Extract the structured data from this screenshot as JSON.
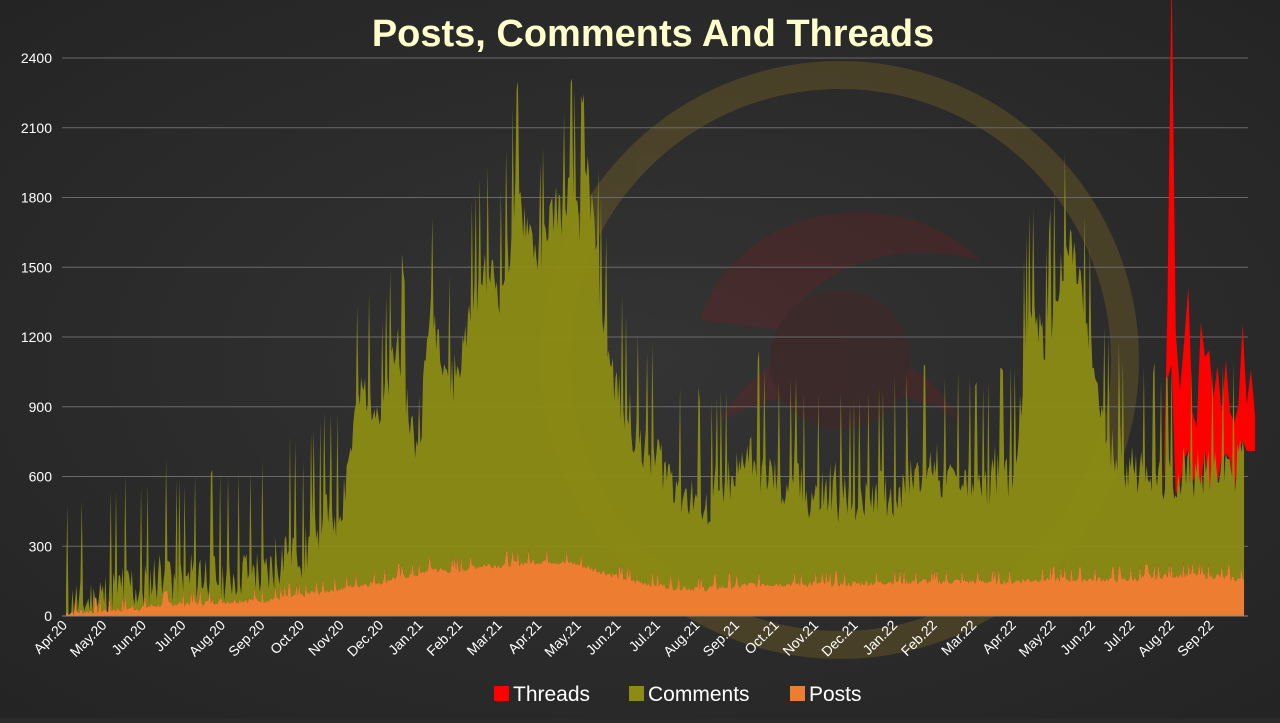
{
  "colors": {
    "background": "#2b2b2b",
    "grid": "#6a6a6a",
    "axis_text": "#ffffff",
    "title_text": "#ffffcc",
    "threads": "#ff0000",
    "comments": "#8c8c14",
    "posts": "#ed7d31"
  },
  "chart_data": {
    "type": "area",
    "title": "Posts, Comments And Threads",
    "xlabel": "",
    "ylabel": "",
    "ylim": [
      0,
      2400
    ],
    "yticks": [
      0,
      300,
      600,
      900,
      1200,
      1500,
      1800,
      2100,
      2400
    ],
    "ytick_labels": [
      "0",
      "300",
      "600",
      "900",
      "1200",
      "1500",
      "1800",
      "2100",
      "2400"
    ],
    "xticks": [
      "Apr.20",
      "May.20",
      "Jun.20",
      "Jul.20",
      "Aug.20",
      "Sep.20",
      "Oct.20",
      "Nov.20",
      "Dec.20",
      "Jan.21",
      "Feb.21",
      "Mar.21",
      "Apr.21",
      "May.21",
      "Jun.21",
      "Jul.21",
      "Aug.21",
      "Sep.21",
      "Oct.21",
      "Nov.21",
      "Dec.21",
      "Jan.22",
      "Feb.22",
      "Mar.22",
      "Apr.22",
      "May.22",
      "Jun.22",
      "Jul.22",
      "Aug.22",
      "Sep.22"
    ],
    "stacked": true,
    "grid": true,
    "legend_position": "bottom",
    "series": [
      {
        "name": "Threads",
        "color": "#ff0000",
        "x": [
          "Jul.22",
          "Jul.22",
          "Aug.22",
          "Aug.22",
          "Aug.22",
          "Aug.22",
          "Aug.22",
          "Aug.22",
          "Aug.22",
          "Aug.22",
          "Aug.22",
          "Aug.22",
          "Aug.22",
          "Aug.22",
          "Aug.22",
          "Aug.22",
          "Sep.22",
          "Sep.22",
          "Sep.22",
          "Sep.22",
          "Sep.22",
          "Sep.22",
          "Sep.22",
          "Sep.22"
        ],
        "values": [
          0,
          0,
          300,
          1700,
          700,
          400,
          500,
          700,
          300,
          200,
          700,
          400,
          600,
          300,
          500,
          200,
          400,
          200,
          300,
          200,
          500,
          200,
          350,
          150
        ]
      },
      {
        "name": "Comments",
        "color": "#8c8c14",
        "monthly_points": [
          {
            "month": "Apr.20",
            "values": [
              30,
              35,
              40,
              45,
              40
            ]
          },
          {
            "month": "May.20",
            "values": [
              60,
              90,
              80,
              100,
              90
            ]
          },
          {
            "month": "Jun.20",
            "values": [
              80,
              120,
              150,
              130,
              110
            ]
          },
          {
            "month": "Jul.20",
            "values": [
              90,
              110,
              120,
              130,
              120
            ]
          },
          {
            "month": "Aug.20",
            "values": [
              100,
              120,
              140,
              130,
              120
            ]
          },
          {
            "month": "Sep.20",
            "values": [
              110,
              130,
              160,
              200,
              220
            ]
          },
          {
            "month": "Oct.20",
            "values": [
              150,
              250,
              300,
              350,
              300
            ]
          },
          {
            "month": "Nov.20",
            "values": [
              400,
              600,
              800,
              850,
              800
            ]
          },
          {
            "month": "Dec.20",
            "values": [
              700,
              900,
              1000,
              800,
              550
            ]
          },
          {
            "month": "Jan.21",
            "values": [
              700,
              1100,
              1050,
              900,
              800
            ]
          },
          {
            "month": "Feb.21",
            "values": [
              900,
              1100,
              1200,
              1300,
              1250
            ]
          },
          {
            "month": "Mar.21",
            "values": [
              1200,
              1350,
              1600,
              1500,
              1400
            ]
          },
          {
            "month": "Apr.21",
            "values": [
              1300,
              1450,
              1550,
              1500,
              1650
            ]
          },
          {
            "month": "May.21",
            "values": [
              1500,
              1700,
              1400,
              1100,
              900
            ]
          },
          {
            "month": "Jun.21",
            "values": [
              750,
              700,
              650,
              600,
              550
            ]
          },
          {
            "month": "Jul.21",
            "values": [
              550,
              500,
              480,
              420,
              400
            ]
          },
          {
            "month": "Aug.21",
            "values": [
              380,
              350,
              380,
              420,
              400
            ]
          },
          {
            "month": "Sep.21",
            "values": [
              450,
              600,
              550,
              500,
              480
            ]
          },
          {
            "month": "Oct.21",
            "values": [
              450,
              420,
              480,
              400,
              380
            ]
          },
          {
            "month": "Nov.21",
            "values": [
              380,
              360,
              400,
              380,
              360
            ]
          },
          {
            "month": "Dec.21",
            "values": [
              350,
              380,
              420,
              400,
              390
            ]
          },
          {
            "month": "Jan.22",
            "values": [
              400,
              450,
              480,
              500,
              480
            ]
          },
          {
            "month": "Feb.22",
            "values": [
              500,
              450,
              430,
              470,
              450
            ]
          },
          {
            "month": "Mar.22",
            "values": [
              420,
              400,
              450,
              500,
              480
            ]
          },
          {
            "month": "Apr.22",
            "values": [
              500,
              900,
              1200,
              1100,
              1000
            ]
          },
          {
            "month": "May.22",
            "values": [
              1200,
              1300,
              1450,
              1300,
              1100
            ]
          },
          {
            "month": "Jun.22",
            "values": [
              900,
              700,
              600,
              550,
              500
            ]
          },
          {
            "month": "Jul.22",
            "values": [
              500,
              480,
              450,
              430,
              420
            ]
          },
          {
            "month": "Aug.22",
            "values": [
              420,
              430,
              440,
              450,
              460
            ]
          },
          {
            "month": "Sep.22",
            "values": [
              460,
              470,
              480,
              500,
              550
            ]
          }
        ]
      },
      {
        "name": "Posts",
        "color": "#ed7d31",
        "monthly_points": [
          {
            "month": "Apr.20",
            "values": [
              15,
              18,
              20,
              22,
              25
            ]
          },
          {
            "month": "May.20",
            "values": [
              25,
              30,
              30,
              35,
              35
            ]
          },
          {
            "month": "Jun.20",
            "values": [
              40,
              45,
              50,
              55,
              55
            ]
          },
          {
            "month": "Jul.20",
            "values": [
              55,
              60,
              60,
              60,
              65
            ]
          },
          {
            "month": "Aug.20",
            "values": [
              65,
              65,
              70,
              70,
              70
            ]
          },
          {
            "month": "Sep.20",
            "values": [
              70,
              75,
              80,
              85,
              85
            ]
          },
          {
            "month": "Oct.20",
            "values": [
              90,
              100,
              105,
              110,
              120
            ]
          },
          {
            "month": "Nov.20",
            "values": [
              120,
              130,
              135,
              140,
              145
            ]
          },
          {
            "month": "Dec.20",
            "values": [
              150,
              160,
              170,
              175,
              180
            ]
          },
          {
            "month": "Jan.21",
            "values": [
              180,
              210,
              200,
              195,
              200
            ]
          },
          {
            "month": "Feb.21",
            "values": [
              200,
              210,
              215,
              220,
              220
            ]
          },
          {
            "month": "Mar.21",
            "values": [
              220,
              225,
              230,
              230,
              235
            ]
          },
          {
            "month": "Apr.21",
            "values": [
              235,
              240,
              235,
              230,
              230
            ]
          },
          {
            "month": "May.21",
            "values": [
              220,
              210,
              200,
              190,
              180
            ]
          },
          {
            "month": "Jun.21",
            "values": [
              170,
              160,
              150,
              145,
              140
            ]
          },
          {
            "month": "Jul.21",
            "values": [
              135,
              130,
              125,
              125,
              120
            ]
          },
          {
            "month": "Aug.21",
            "values": [
              120,
              120,
              125,
              125,
              130
            ]
          },
          {
            "month": "Sep.21",
            "values": [
              130,
              135,
              135,
              140,
              140
            ]
          },
          {
            "month": "Oct.21",
            "values": [
              140,
              140,
              140,
              140,
              140
            ]
          },
          {
            "month": "Nov.21",
            "values": [
              140,
              140,
              140,
              140,
              140
            ]
          },
          {
            "month": "Dec.21",
            "values": [
              140,
              145,
              145,
              145,
              150
            ]
          },
          {
            "month": "Jan.22",
            "values": [
              150,
              150,
              150,
              150,
              150
            ]
          },
          {
            "month": "Feb.22",
            "values": [
              150,
              150,
              150,
              150,
              150
            ]
          },
          {
            "month": "Mar.22",
            "values": [
              150,
              150,
              150,
              150,
              150
            ]
          },
          {
            "month": "Apr.22",
            "values": [
              150,
              155,
              155,
              160,
              160
            ]
          },
          {
            "month": "May.22",
            "values": [
              160,
              160,
              160,
              160,
              160
            ]
          },
          {
            "month": "Jun.22",
            "values": [
              160,
              160,
              160,
              160,
              160
            ]
          },
          {
            "month": "Jul.22",
            "values": [
              160,
              165,
              170,
              170,
              175
            ]
          },
          {
            "month": "Aug.22",
            "values": [
              175,
              180,
              180,
              180,
              175
            ]
          },
          {
            "month": "Sep.22",
            "values": [
              175,
              170,
              165,
              160,
              160
            ]
          }
        ]
      }
    ],
    "legend": [
      "Threads",
      "Comments",
      "Posts"
    ]
  }
}
